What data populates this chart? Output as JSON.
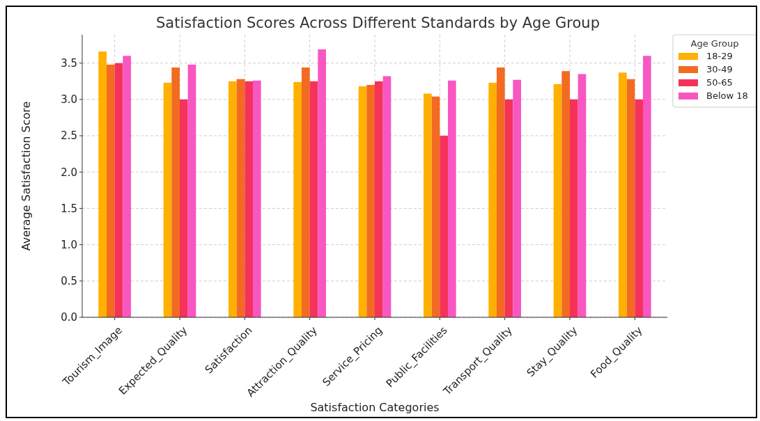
{
  "chart_data": {
    "type": "bar",
    "title": "Satisfaction Scores Across Different Standards by Age Group",
    "xlabel": "Satisfaction Categories",
    "ylabel": "Average Satisfaction Score",
    "legend_title": "Age Group",
    "categories": [
      "Tourism_Image",
      "Expected_Quality",
      "Satisfaction",
      "Attraction_Quality",
      "Service_Pricing",
      "Public_Facilities",
      "Transport_Quality",
      "Stay_Quality",
      "Food_Quality"
    ],
    "series": [
      {
        "name": "18-29",
        "color": "#ffb000",
        "values": [
          3.66,
          3.23,
          3.25,
          3.24,
          3.18,
          3.08,
          3.23,
          3.21,
          3.37
        ]
      },
      {
        "name": "30-49",
        "color": "#f26b21",
        "values": [
          3.48,
          3.44,
          3.28,
          3.44,
          3.2,
          3.04,
          3.44,
          3.39,
          3.28
        ]
      },
      {
        "name": "50-65",
        "color": "#f5325a",
        "values": [
          3.5,
          3.0,
          3.25,
          3.25,
          3.25,
          2.5,
          3.0,
          3.0,
          3.0
        ]
      },
      {
        "name": "Below 18",
        "color": "#f857c1",
        "values": [
          3.6,
          3.48,
          3.26,
          3.69,
          3.32,
          3.26,
          3.27,
          3.35,
          3.6
        ]
      }
    ],
    "ylim": [
      0,
      3.89
    ],
    "yticks": [
      {
        "value": 0,
        "label": "0.0"
      },
      {
        "value": 0.5,
        "label": "0.5"
      },
      {
        "value": 1,
        "label": "1.0"
      },
      {
        "value": 1.5,
        "label": "1.5"
      },
      {
        "value": 2,
        "label": "2.0"
      },
      {
        "value": 2.5,
        "label": "2.5"
      },
      {
        "value": 3,
        "label": "3.0"
      },
      {
        "value": 3.5,
        "label": "3.5"
      }
    ],
    "grid": true,
    "legend": "top right"
  }
}
